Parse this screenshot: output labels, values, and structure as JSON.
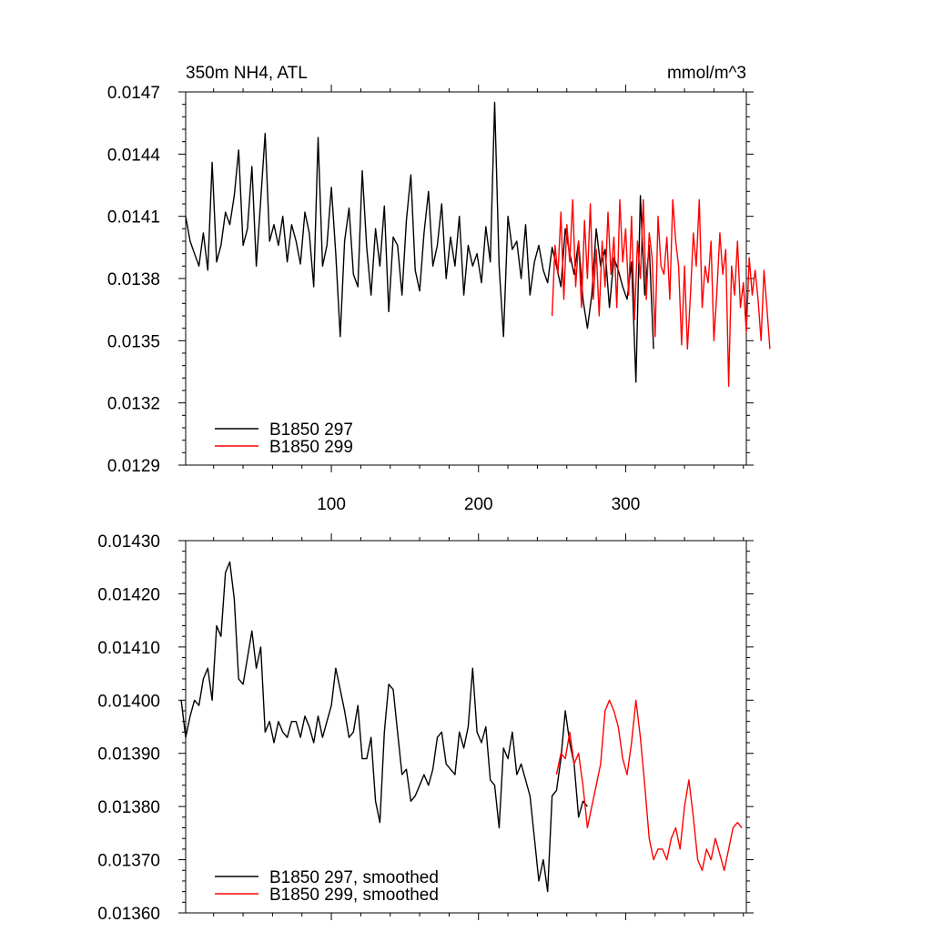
{
  "chart_data": [
    {
      "type": "line",
      "title": "350m NH4, ATL",
      "units": "mmol/m^3",
      "xlim": [
        1,
        382
      ],
      "ylim": [
        0.0129,
        0.0147
      ],
      "x_ticks": [
        100,
        200,
        300
      ],
      "x_tick_labels": [
        "100",
        "200",
        "300"
      ],
      "y_ticks": [
        0.0129,
        0.0132,
        0.0135,
        0.0138,
        0.0141,
        0.0144,
        0.0147
      ],
      "y_tick_labels": [
        "0.0129",
        "0.0132",
        "0.0135",
        "0.0138",
        "0.0141",
        "0.0144",
        "0.0147"
      ],
      "legend_position": "bottom-left",
      "series": [
        {
          "name": "B1850 297",
          "color": "#000000",
          "x_start": 1,
          "x_step": 3,
          "values": [
            0.0141,
            0.01398,
            0.01392,
            0.01386,
            0.01402,
            0.01384,
            0.01436,
            0.01388,
            0.01396,
            0.01412,
            0.01406,
            0.0142,
            0.01442,
            0.01396,
            0.01404,
            0.01434,
            0.01386,
            0.01418,
            0.0145,
            0.01398,
            0.01406,
            0.01396,
            0.0141,
            0.01388,
            0.01406,
            0.01398,
            0.01387,
            0.01412,
            0.01402,
            0.01376,
            0.01448,
            0.01386,
            0.01396,
            0.01424,
            0.01392,
            0.01352,
            0.01398,
            0.01414,
            0.01382,
            0.01376,
            0.01432,
            0.01395,
            0.01372,
            0.01404,
            0.01386,
            0.01415,
            0.01364,
            0.014,
            0.01396,
            0.01372,
            0.01408,
            0.0143,
            0.01384,
            0.01374,
            0.01402,
            0.01422,
            0.01386,
            0.01396,
            0.01416,
            0.0138,
            0.014,
            0.01386,
            0.0141,
            0.01372,
            0.01396,
            0.01386,
            0.01392,
            0.01378,
            0.01405,
            0.01388,
            0.01465,
            0.01386,
            0.01352,
            0.0141,
            0.01394,
            0.01398,
            0.0138,
            0.01406,
            0.01372,
            0.01388,
            0.01396,
            0.01384,
            0.01378,
            0.01395,
            0.01386,
            0.01376,
            0.01404,
            0.01392,
            0.01382,
            0.01398,
            0.0137,
            0.01356,
            0.01372,
            0.01404,
            0.01386,
            0.01394,
            0.01366,
            0.0139,
            0.01384,
            0.01376,
            0.0137,
            0.01388,
            0.0133,
            0.0142,
            0.01372,
            0.01396,
            0.01346
          ]
        },
        {
          "name": "B1850 299",
          "color": "#ff0000",
          "x_start": 250,
          "x_step": 2,
          "values": [
            0.01362,
            0.01396,
            0.01382,
            0.01412,
            0.0137,
            0.01406,
            0.01388,
            0.01418,
            0.01376,
            0.01398,
            0.01366,
            0.01408,
            0.0138,
            0.01416,
            0.0137,
            0.01394,
            0.01362,
            0.01398,
            0.01376,
            0.01412,
            0.01382,
            0.014,
            0.01366,
            0.01418,
            0.01388,
            0.01404,
            0.01372,
            0.0141,
            0.0136,
            0.01398,
            0.0138,
            0.01418,
            0.0137,
            0.01402,
            0.0139,
            0.01352,
            0.0141,
            0.01386,
            0.01382,
            0.014,
            0.0137,
            0.01418,
            0.01398,
            0.01386,
            0.01348,
            0.01386,
            0.01346,
            0.01372,
            0.01402,
            0.01386,
            0.01418,
            0.01366,
            0.01386,
            0.01378,
            0.01398,
            0.0135,
            0.01374,
            0.01402,
            0.01382,
            0.01394,
            0.01328,
            0.01386,
            0.01372,
            0.01398,
            0.01366,
            0.01378,
            0.01354,
            0.0139,
            0.01372,
            0.01384,
            0.0137,
            0.0135,
            0.01384,
            0.01366,
            0.01346
          ]
        }
      ]
    },
    {
      "type": "line",
      "xlim": [
        1,
        382
      ],
      "ylim": [
        0.0136,
        0.0143
      ],
      "x_ticks": [
        100,
        200,
        300
      ],
      "y_ticks": [
        0.0136,
        0.0137,
        0.0138,
        0.0139,
        0.014,
        0.0141,
        0.0142,
        0.0143
      ],
      "y_tick_labels": [
        "0.01360",
        "0.01370",
        "0.01380",
        "0.01390",
        "0.01400",
        "0.01410",
        "0.01420",
        "0.01430"
      ],
      "legend_position": "bottom-left",
      "series": [
        {
          "name": "B1850 297, smoothed",
          "color": "#000000",
          "x_start": -2,
          "x_step": 3,
          "values": [
            0.014,
            0.01393,
            0.01397,
            0.014,
            0.01399,
            0.01404,
            0.01406,
            0.014,
            0.01414,
            0.01412,
            0.01424,
            0.01426,
            0.01419,
            0.01404,
            0.01403,
            0.01408,
            0.01413,
            0.01406,
            0.0141,
            0.01394,
            0.01396,
            0.01392,
            0.01396,
            0.01394,
            0.01393,
            0.01396,
            0.01396,
            0.01393,
            0.01397,
            0.01395,
            0.01392,
            0.01397,
            0.01393,
            0.01396,
            0.01399,
            0.01406,
            0.01402,
            0.01398,
            0.01393,
            0.01394,
            0.01399,
            0.01389,
            0.01389,
            0.01393,
            0.01381,
            0.01377,
            0.01394,
            0.01403,
            0.01402,
            0.01394,
            0.01386,
            0.01387,
            0.01381,
            0.01382,
            0.01384,
            0.01386,
            0.01384,
            0.01387,
            0.01393,
            0.01394,
            0.01388,
            0.01387,
            0.01386,
            0.01394,
            0.01391,
            0.01395,
            0.01406,
            0.01394,
            0.01392,
            0.01395,
            0.01385,
            0.01384,
            0.01376,
            0.01391,
            0.01389,
            0.01394,
            0.01386,
            0.01388,
            0.01385,
            0.01382,
            0.01374,
            0.01366,
            0.0137,
            0.01364,
            0.01382,
            0.01383,
            0.01389,
            0.01398,
            0.01392,
            0.01388,
            0.01378,
            0.01381,
            0.0138
          ]
        },
        {
          "name": "B1850 299, smoothed",
          "color": "#ff0000",
          "x_start": 253,
          "x_step": 3,
          "values": [
            0.01386,
            0.0139,
            0.01389,
            0.01394,
            0.01388,
            0.0139,
            0.01384,
            0.01376,
            0.0138,
            0.01384,
            0.01388,
            0.01398,
            0.014,
            0.01398,
            0.01395,
            0.01389,
            0.01386,
            0.01392,
            0.014,
            0.01393,
            0.01384,
            0.01374,
            0.0137,
            0.01372,
            0.01372,
            0.0137,
            0.01374,
            0.01376,
            0.01372,
            0.0138,
            0.01385,
            0.01378,
            0.0137,
            0.01368,
            0.01372,
            0.0137,
            0.01374,
            0.01371,
            0.01368,
            0.01372,
            0.01376,
            0.01377,
            0.01376
          ]
        }
      ]
    }
  ]
}
